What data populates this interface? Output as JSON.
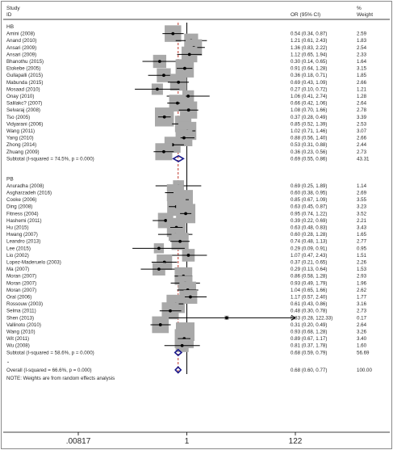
{
  "chart_data": {
    "type": "forest",
    "header": {
      "study_line1": "Study",
      "study_line2": "ID",
      "or_label": "OR (95% CI)",
      "weight_line1": "%",
      "weight_line2": "Weight"
    },
    "x_scale": "log",
    "x_range": [
      0.00817,
      122
    ],
    "x_ticks": [
      {
        "value": 0.00817,
        "label": ".00817"
      },
      {
        "value": 1,
        "label": "1"
      },
      {
        "value": 122,
        "label": "122"
      }
    ],
    "groups": [
      {
        "name": "HB",
        "studies": [
          {
            "id": "Amini (2008)",
            "or": 0.54,
            "lo": 0.34,
            "hi": 0.87,
            "ci": "0.54 (0.34, 0.87)",
            "weight": "2.59"
          },
          {
            "id": "Anand (2010)",
            "or": 1.21,
            "lo": 0.61,
            "hi": 2.43,
            "ci": "1.21 (0.61, 2.43)",
            "weight": "1.83"
          },
          {
            "id": "Ansari (2009)",
            "or": 1.36,
            "lo": 0.83,
            "hi": 2.22,
            "ci": "1.36 (0.83, 2.22)",
            "weight": "2.54"
          },
          {
            "id": "Ansari (2009)",
            "or": 1.12,
            "lo": 0.65,
            "hi": 1.94,
            "ci": "1.12 (0.65, 1.94)",
            "weight": "2.33"
          },
          {
            "id": "Bhanothu (2015)",
            "or": 0.3,
            "lo": 0.14,
            "hi": 0.65,
            "ci": "0.30 (0.14, 0.65)",
            "weight": "1.64"
          },
          {
            "id": "Etokebe (2005)",
            "or": 0.91,
            "lo": 0.64,
            "hi": 1.28,
            "ci": "0.91 (0.64, 1.28)",
            "weight": "3.15"
          },
          {
            "id": "Gullapalli (2015)",
            "or": 0.36,
            "lo": 0.18,
            "hi": 0.71,
            "ci": "0.36 (0.18, 0.71)",
            "weight": "1.85"
          },
          {
            "id": "Mabunda (2015)",
            "or": 0.69,
            "lo": 0.43,
            "hi": 1.09,
            "ci": "0.69 (0.43, 1.09)",
            "weight": "2.66"
          },
          {
            "id": "Mosaad (2010)",
            "or": 0.27,
            "lo": 0.1,
            "hi": 0.72,
            "ci": "0.27 (0.10, 0.72)",
            "weight": "1.21"
          },
          {
            "id": "Onay (2010)",
            "or": 1.06,
            "lo": 0.41,
            "hi": 2.74,
            "ci": "1.06 (0.41, 2.74)",
            "weight": "1.28"
          },
          {
            "id": "Salilakc? (2007)",
            "or": 0.66,
            "lo": 0.42,
            "hi": 1.06,
            "ci": "0.66 (0.42, 1.06)",
            "weight": "2.64"
          },
          {
            "id": "Selvaraj (2008)",
            "or": 1.08,
            "lo": 0.7,
            "hi": 1.66,
            "ci": "1.08 (0.70, 1.66)",
            "weight": "2.78"
          },
          {
            "id": "Tso (2005)",
            "or": 0.37,
            "lo": 0.28,
            "hi": 0.49,
            "ci": "0.37 (0.28, 0.49)",
            "weight": "3.39"
          },
          {
            "id": "Vidyarani (2006)",
            "or": 0.85,
            "lo": 0.52,
            "hi": 1.39,
            "ci": "0.85 (0.52, 1.39)",
            "weight": "2.53"
          },
          {
            "id": "Wang (2011)",
            "or": 1.02,
            "lo": 0.71,
            "hi": 1.46,
            "ci": "1.02 (0.71, 1.46)",
            "weight": "3.07"
          },
          {
            "id": "Yang (2010)",
            "or": 0.88,
            "lo": 0.56,
            "hi": 1.4,
            "ci": "0.88 (0.56, 1.40)",
            "weight": "2.66"
          },
          {
            "id": "Zhong (2014)",
            "or": 0.53,
            "lo": 0.31,
            "hi": 0.88,
            "ci": "0.53 (0.31, 0.88)",
            "weight": "2.44"
          },
          {
            "id": "Zhuang (2009)",
            "or": 0.36,
            "lo": 0.23,
            "hi": 0.56,
            "ci": "0.36 (0.23, 0.56)",
            "weight": "2.73"
          }
        ],
        "subtotal": {
          "label": "Subtotal  (I-squared = 74.5%, p = 0.000)",
          "or": 0.69,
          "lo": 0.55,
          "hi": 0.86,
          "ci": "0.69 (0.55, 0.86)",
          "weight": "43.31"
        }
      },
      {
        "name": "PB",
        "studies": [
          {
            "id": "Anuradha (2008)",
            "or": 0.69,
            "lo": 0.25,
            "hi": 1.89,
            "ci": "0.69 (0.25, 1.89)",
            "weight": "1.14"
          },
          {
            "id": "Asgharzadeh (2016)",
            "or": 0.6,
            "lo": 0.38,
            "hi": 0.95,
            "ci": "0.60 (0.38, 0.95)",
            "weight": "2.69"
          },
          {
            "id": "Cooke (2006)",
            "or": 0.85,
            "lo": 0.67,
            "hi": 1.09,
            "ci": "0.85 (0.67, 1.09)",
            "weight": "3.55"
          },
          {
            "id": "Ding (2008)",
            "or": 0.63,
            "lo": 0.45,
            "hi": 0.87,
            "ci": "0.63 (0.45, 0.87)",
            "weight": "3.23"
          },
          {
            "id": "Fitness (2004)",
            "or": 0.95,
            "lo": 0.74,
            "hi": 1.22,
            "ci": "0.95 (0.74, 1.22)",
            "weight": "3.52"
          },
          {
            "id": "Hashemi (2011)",
            "or": 0.39,
            "lo": 0.22,
            "hi": 0.69,
            "ci": "0.39 (0.22, 0.69)",
            "weight": "2.21"
          },
          {
            "id": "Hu (2015)",
            "or": 0.63,
            "lo": 0.48,
            "hi": 0.83,
            "ci": "0.63 (0.48, 0.83)",
            "weight": "3.43"
          },
          {
            "id": "Hwang (2007)",
            "or": 0.6,
            "lo": 0.28,
            "hi": 1.28,
            "ci": "0.60 (0.28, 1.28)",
            "weight": "1.65"
          },
          {
            "id": "Leandro (2013)",
            "or": 0.74,
            "lo": 0.48,
            "hi": 1.13,
            "ci": "0.74 (0.48, 1.13)",
            "weight": "2.77"
          },
          {
            "id": "Lee (2015)",
            "or": 0.29,
            "lo": 0.09,
            "hi": 0.91,
            "ci": "0.29 (0.09, 0.91)",
            "weight": "0.95"
          },
          {
            "id": "Lio (2002)",
            "or": 1.07,
            "lo": 0.47,
            "hi": 2.43,
            "ci": "1.07 (0.47, 2.43)",
            "weight": "1.51"
          },
          {
            "id": "Lopez-Maderuelo (2003)",
            "or": 0.37,
            "lo": 0.21,
            "hi": 0.65,
            "ci": "0.37 (0.21, 0.65)",
            "weight": "2.26"
          },
          {
            "id": "Ma (2007)",
            "or": 0.29,
            "lo": 0.13,
            "hi": 0.64,
            "ci": "0.29 (0.13, 0.64)",
            "weight": "1.53"
          },
          {
            "id": "Moran (2007)",
            "or": 0.86,
            "lo": 0.58,
            "hi": 1.28,
            "ci": "0.86 (0.58, 1.28)",
            "weight": "2.93"
          },
          {
            "id": "Moran (2007)",
            "or": 0.93,
            "lo": 0.49,
            "hi": 1.79,
            "ci": "0.93 (0.49, 1.79)",
            "weight": "1.96"
          },
          {
            "id": "Moran (2007)",
            "or": 1.04,
            "lo": 0.65,
            "hi": 1.66,
            "ci": "1.04 (0.65, 1.66)",
            "weight": "2.62"
          },
          {
            "id": "Oral (2006)",
            "or": 1.17,
            "lo": 0.57,
            "hi": 2.4,
            "ci": "1.17 (0.57, 2.40)",
            "weight": "1.77"
          },
          {
            "id": "Rossouw (2003)",
            "or": 0.61,
            "lo": 0.43,
            "hi": 0.86,
            "ci": "0.61 (0.43, 0.86)",
            "weight": "3.16"
          },
          {
            "id": "Selma (2011)",
            "or": 0.48,
            "lo": 0.3,
            "hi": 0.78,
            "ci": "0.48 (0.30, 0.78)",
            "weight": "2.73"
          },
          {
            "id": "Shen (2013)",
            "or": 5.83,
            "lo": 0.28,
            "hi": 122.33,
            "ci": "5.83 (0.28, 122.33)",
            "weight": "0.17"
          },
          {
            "id": "Vallinoto (2010)",
            "or": 0.31,
            "lo": 0.2,
            "hi": 0.49,
            "ci": "0.31 (0.20, 0.49)",
            "weight": "2.64"
          },
          {
            "id": "Wang (2010)",
            "or": 0.93,
            "lo": 0.68,
            "hi": 1.28,
            "ci": "0.93 (0.68, 1.28)",
            "weight": "3.26"
          },
          {
            "id": "Wit (2011)",
            "or": 0.89,
            "lo": 0.67,
            "hi": 1.17,
            "ci": "0.89 (0.67, 1.17)",
            "weight": "3.40"
          },
          {
            "id": "Wu (2008)",
            "or": 0.81,
            "lo": 0.37,
            "hi": 1.78,
            "ci": "0.81 (0.37, 1.78)",
            "weight": "1.60"
          }
        ],
        "subtotal": {
          "label": "Subtotal  (I-squared = 58.6%, p = 0.000)",
          "or": 0.68,
          "lo": 0.59,
          "hi": 0.79,
          "ci": "0.68 (0.59, 0.79)",
          "weight": "56.69"
        }
      }
    ],
    "overall": {
      "label": "Overall  (I-squared = 66.6%, p = 0.000)",
      "or": 0.68,
      "lo": 0.6,
      "hi": 0.77,
      "ci": "0.68 (0.60, 0.77)",
      "weight": "100.00"
    },
    "note": "NOTE: Weights are from random effects analysis",
    "colors": {
      "box": "#a9a9a9",
      "diamond": "#1a1a8c",
      "line": "#000000",
      "ref_dash": "#c0392b",
      "frame": "#8a8a8a"
    }
  }
}
